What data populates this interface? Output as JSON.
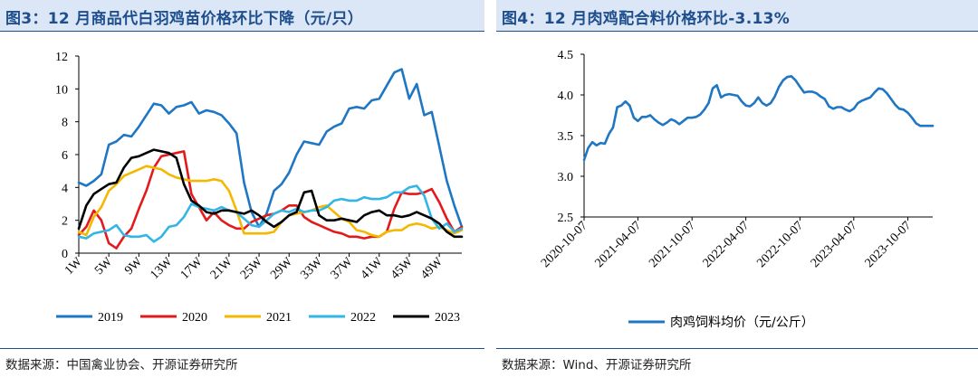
{
  "left": {
    "title": "图3：12 月商品代白羽鸡苗价格环比下降（元/只）",
    "source": "数据来源：中国禽业协会、开源证券研究所"
  },
  "right": {
    "title": "图4：12 月肉鸡配合料价格环比-3.13%",
    "source": "数据来源：Wind、开源证券研究所"
  },
  "colors": {
    "2019": "#1f77c4",
    "2020": "#e31a1c",
    "2021": "#f5b800",
    "2022": "#33b5e5",
    "2023": "#000000",
    "feed": "#1f77c4"
  },
  "chart_data": [
    {
      "type": "line",
      "title": "",
      "xlabel": "",
      "ylabel": "",
      "ylim": [
        0,
        12
      ],
      "yticks": [
        0,
        2,
        4,
        6,
        8,
        10,
        12
      ],
      "xtick_labels": [
        "1W",
        "5W",
        "9W",
        "13W",
        "17W",
        "21W",
        "25W",
        "29W",
        "33W",
        "37W",
        "41W",
        "45W",
        "49W"
      ],
      "xtick_weeks": [
        1,
        5,
        9,
        13,
        17,
        21,
        25,
        29,
        33,
        37,
        41,
        45,
        49
      ],
      "x_weeks": [
        1,
        2,
        3,
        4,
        5,
        6,
        7,
        8,
        9,
        10,
        11,
        12,
        13,
        14,
        15,
        16,
        17,
        18,
        19,
        20,
        21,
        22,
        23,
        24,
        25,
        26,
        27,
        28,
        29,
        30,
        31,
        32,
        33,
        34,
        35,
        36,
        37,
        38,
        39,
        40,
        41,
        42,
        43,
        44,
        45,
        46,
        47,
        48,
        49,
        50,
        51,
        52
      ],
      "legend_position": "bottom",
      "series": [
        {
          "name": "2019",
          "color_key": "2019",
          "values": [
            4.3,
            4.1,
            4.4,
            4.8,
            6.6,
            6.8,
            7.2,
            7.1,
            7.7,
            8.4,
            9.1,
            9.0,
            8.5,
            8.9,
            9.0,
            9.2,
            8.5,
            8.7,
            8.6,
            8.4,
            7.9,
            7.3,
            4.3,
            2.5,
            1.6,
            2.4,
            3.8,
            4.2,
            4.9,
            6.0,
            6.8,
            6.7,
            6.6,
            7.4,
            7.7,
            7.9,
            8.8,
            8.9,
            8.8,
            9.3,
            9.4,
            10.2,
            11.0,
            11.2,
            9.4,
            10.3,
            8.4,
            8.6,
            6.5,
            4.4,
            2.9,
            1.6
          ]
        },
        {
          "name": "2020",
          "color_key": "2020",
          "values": [
            1.1,
            1.6,
            2.6,
            2.0,
            0.6,
            0.3,
            1.0,
            1.5,
            2.7,
            3.8,
            5.2,
            5.9,
            6.0,
            6.1,
            6.2,
            3.6,
            2.8,
            2.0,
            2.5,
            2.0,
            1.7,
            1.5,
            1.5,
            1.9,
            2.1,
            2.3,
            2.4,
            2.6,
            2.9,
            2.9,
            2.2,
            1.9,
            1.7,
            1.5,
            1.3,
            1.2,
            1.0,
            1.0,
            0.9,
            1.0,
            1.0,
            1.3,
            2.7,
            3.7,
            3.6,
            3.6,
            3.7,
            3.9,
            3.1,
            2.1,
            1.3,
            1.6
          ]
        },
        {
          "name": "2021",
          "color_key": "2021",
          "values": [
            1.3,
            1.1,
            2.2,
            2.8,
            3.8,
            4.2,
            4.7,
            4.9,
            5.1,
            5.3,
            5.2,
            5.1,
            4.8,
            4.6,
            4.5,
            4.4,
            4.4,
            4.4,
            4.5,
            4.4,
            3.8,
            2.6,
            1.2,
            1.2,
            1.2,
            1.2,
            1.3,
            1.9,
            2.3,
            2.4,
            2.5,
            2.6,
            2.8,
            2.9,
            2.5,
            2.1,
            1.9,
            1.4,
            1.3,
            1.1,
            1.0,
            1.3,
            1.4,
            1.4,
            1.7,
            1.8,
            1.7,
            1.5,
            1.6,
            1.4,
            1.2,
            1.4
          ]
        },
        {
          "name": "2022",
          "color_key": "2022",
          "values": [
            1.0,
            0.9,
            1.2,
            1.3,
            1.4,
            1.7,
            1.1,
            1.0,
            1.0,
            1.1,
            0.7,
            1.0,
            1.6,
            1.7,
            2.2,
            3.0,
            2.8,
            2.7,
            2.6,
            2.8,
            2.6,
            2.5,
            2.1,
            1.7,
            1.6,
            2.0,
            2.4,
            2.6,
            2.5,
            2.7,
            2.5,
            2.6,
            2.6,
            2.8,
            3.2,
            3.3,
            3.2,
            3.2,
            3.4,
            3.3,
            3.3,
            3.4,
            3.7,
            3.7,
            4.0,
            4.1,
            3.5,
            2.1,
            1.5,
            1.8,
            1.3,
            1.5
          ]
        },
        {
          "name": "2023",
          "color_key": "2023",
          "values": [
            1.5,
            2.9,
            3.6,
            3.9,
            4.2,
            4.3,
            5.2,
            5.8,
            5.9,
            6.1,
            6.3,
            6.2,
            6.1,
            5.8,
            4.2,
            3.2,
            2.9,
            2.5,
            2.4,
            2.6,
            2.6,
            2.5,
            2.4,
            2.6,
            2.3,
            1.9,
            1.6,
            1.9,
            2.3,
            2.5,
            3.7,
            3.8,
            2.3,
            2.0,
            2.0,
            2.1,
            2.0,
            1.9,
            2.3,
            2.5,
            2.6,
            2.3,
            2.3,
            2.2,
            2.3,
            2.5,
            2.3,
            2.1,
            1.8,
            1.3,
            1.0,
            1.0
          ]
        }
      ]
    },
    {
      "type": "line",
      "title": "",
      "xlabel": "",
      "ylabel": "",
      "ylim": [
        2.5,
        4.5
      ],
      "yticks": [
        "2.5",
        "3.0",
        "3.5",
        "4.0",
        "4.5"
      ],
      "xtick_labels": [
        "2020-10-07",
        "2021-04-07",
        "2021-10-07",
        "2022-04-07",
        "2022-10-07",
        "2023-04-07",
        "2023-10-07"
      ],
      "legend_position": "bottom",
      "series": [
        {
          "name": "肉鸡饲料均价（元/公斤）",
          "color_key": "feed",
          "x": [
            "2020-10-07",
            "2020-10-21",
            "2020-11-04",
            "2020-11-18",
            "2020-12-02",
            "2020-12-16",
            "2020-12-30",
            "2021-01-13",
            "2021-01-27",
            "2021-02-10",
            "2021-02-24",
            "2021-03-10",
            "2021-03-24",
            "2021-04-07",
            "2021-04-21",
            "2021-05-05",
            "2021-05-19",
            "2021-06-02",
            "2021-06-16",
            "2021-06-30",
            "2021-07-14",
            "2021-07-28",
            "2021-08-11",
            "2021-08-25",
            "2021-09-08",
            "2021-09-22",
            "2021-10-07",
            "2021-10-21",
            "2021-11-04",
            "2021-11-18",
            "2021-12-02",
            "2021-12-16",
            "2021-12-30",
            "2022-01-13",
            "2022-01-27",
            "2022-02-10",
            "2022-02-24",
            "2022-03-10",
            "2022-03-24",
            "2022-04-07",
            "2022-04-21",
            "2022-05-05",
            "2022-05-19",
            "2022-06-02",
            "2022-06-16",
            "2022-06-30",
            "2022-07-14",
            "2022-07-28",
            "2022-08-11",
            "2022-08-25",
            "2022-09-08",
            "2022-09-22",
            "2022-10-07",
            "2022-10-21",
            "2022-11-04",
            "2022-11-18",
            "2022-12-02",
            "2022-12-16",
            "2022-12-30",
            "2023-01-13",
            "2023-01-27",
            "2023-02-10",
            "2023-02-24",
            "2023-03-10",
            "2023-03-24",
            "2023-04-07",
            "2023-04-21",
            "2023-05-05",
            "2023-05-19",
            "2023-06-02",
            "2023-06-16",
            "2023-06-30",
            "2023-07-14",
            "2023-07-28",
            "2023-08-11",
            "2023-08-25",
            "2023-09-08",
            "2023-09-22",
            "2023-10-07",
            "2023-10-21",
            "2023-11-04",
            "2023-11-18",
            "2023-12-02",
            "2023-12-16",
            "2023-12-30"
          ],
          "values": [
            3.2,
            3.35,
            3.42,
            3.38,
            3.41,
            3.4,
            3.52,
            3.6,
            3.85,
            3.87,
            3.92,
            3.87,
            3.72,
            3.68,
            3.73,
            3.73,
            3.75,
            3.7,
            3.66,
            3.63,
            3.66,
            3.7,
            3.68,
            3.64,
            3.68,
            3.72,
            3.72,
            3.73,
            3.76,
            3.82,
            3.9,
            4.08,
            4.12,
            3.97,
            4.0,
            4.01,
            4.0,
            3.99,
            3.92,
            3.87,
            3.86,
            3.9,
            3.97,
            3.9,
            3.87,
            3.9,
            3.98,
            4.1,
            4.18,
            4.22,
            4.23,
            4.18,
            4.1,
            4.03,
            4.04,
            4.04,
            4.02,
            3.98,
            3.95,
            3.86,
            3.83,
            3.85,
            3.85,
            3.82,
            3.8,
            3.83,
            3.9,
            3.93,
            3.95,
            3.97,
            4.03,
            4.08,
            4.07,
            4.02,
            3.95,
            3.88,
            3.83,
            3.82,
            3.78,
            3.72,
            3.65,
            3.62,
            3.62,
            3.62,
            3.62
          ]
        }
      ]
    }
  ]
}
